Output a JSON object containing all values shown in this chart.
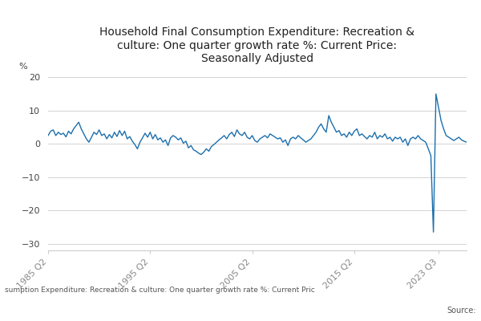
{
  "title": "Household Final Consumption Expenditure: Recreation &\nculture: One quarter growth rate %: Current Price:\nSeasonally Adjusted",
  "ylabel": "%",
  "line_color": "#1c6fad",
  "line_width": 1.0,
  "ylim": [
    -32,
    22
  ],
  "yticks": [
    -30,
    -20,
    -10,
    0,
    10,
    20
  ],
  "bg_color": "#ffffff",
  "grid_color": "#cccccc",
  "footer_text": "sumption Expenditure: Recreation & culture: One quarter growth rate %: Current Pric",
  "source_text": "Source:",
  "x_tick_labels": [
    "1985 Q2",
    "1995 Q2",
    "2005 Q2",
    "2015 Q2",
    "2023 Q3"
  ],
  "data": [
    2.5,
    3.8,
    4.2,
    2.5,
    3.5,
    2.8,
    3.2,
    2.1,
    3.8,
    3.0,
    4.5,
    5.5,
    6.5,
    4.5,
    3.0,
    1.5,
    0.5,
    2.0,
    3.5,
    2.8,
    4.2,
    2.5,
    3.0,
    1.5,
    2.8,
    1.8,
    3.5,
    2.2,
    4.0,
    2.5,
    3.8,
    1.5,
    2.2,
    0.8,
    -0.2,
    -1.5,
    0.5,
    1.8,
    3.2,
    2.0,
    3.5,
    1.5,
    2.8,
    1.2,
    1.8,
    0.5,
    1.2,
    -0.5,
    1.8,
    2.5,
    2.0,
    1.2,
    1.8,
    0.2,
    0.8,
    -1.2,
    -0.5,
    -1.8,
    -2.2,
    -2.8,
    -3.2,
    -2.5,
    -1.5,
    -2.2,
    -0.8,
    -0.2,
    0.5,
    1.2,
    1.8,
    2.5,
    1.5,
    2.8,
    3.5,
    2.2,
    4.2,
    3.0,
    2.5,
    3.5,
    2.0,
    1.5,
    2.5,
    1.0,
    0.5,
    1.5,
    2.0,
    2.5,
    1.8,
    3.0,
    2.5,
    2.0,
    1.5,
    1.8,
    0.5,
    1.2,
    -0.5,
    1.5,
    2.0,
    1.5,
    2.5,
    1.8,
    1.2,
    0.5,
    1.0,
    1.5,
    2.5,
    3.5,
    5.0,
    6.0,
    4.5,
    3.5,
    8.5,
    6.5,
    5.0,
    3.5,
    4.0,
    2.5,
    3.0,
    2.0,
    3.5,
    2.5,
    3.8,
    4.5,
    2.5,
    3.0,
    2.2,
    1.5,
    2.5,
    2.0,
    3.5,
    1.5,
    2.5,
    2.0,
    3.0,
    1.5,
    2.0,
    0.8,
    2.0,
    1.5,
    2.0,
    0.5,
    1.5,
    -0.5,
    1.5,
    2.0,
    1.5,
    2.5,
    1.5,
    1.0,
    0.5,
    -1.5,
    -3.5,
    -26.5,
    15.0,
    11.0,
    7.0,
    4.5,
    2.5,
    2.0,
    1.5,
    1.0,
    1.5,
    2.0,
    1.2,
    0.8,
    0.5
  ]
}
